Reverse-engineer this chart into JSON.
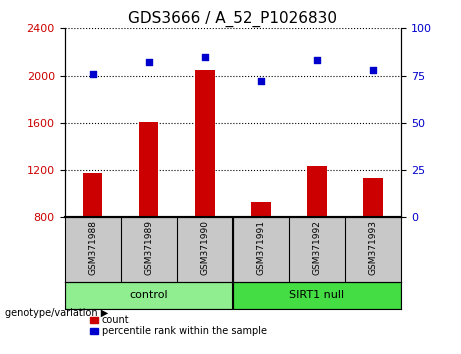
{
  "title": "GDS3666 / A_52_P1026830",
  "samples": [
    "GSM371988",
    "GSM371989",
    "GSM371990",
    "GSM371991",
    "GSM371992",
    "GSM371993"
  ],
  "count_values": [
    1170,
    1610,
    2050,
    930,
    1230,
    1130
  ],
  "percentile_values": [
    76,
    82,
    85,
    72,
    83,
    78
  ],
  "ylim_left": [
    800,
    2400
  ],
  "ylim_right": [
    0,
    100
  ],
  "yticks_left": [
    800,
    1200,
    1600,
    2000,
    2400
  ],
  "yticks_right": [
    0,
    25,
    50,
    75,
    100
  ],
  "bar_color": "#cc0000",
  "point_color": "#0000cc",
  "bar_baseline": 800,
  "groups": [
    {
      "label": "control",
      "start": 0,
      "end": 2,
      "color": "#90ee90"
    },
    {
      "label": "SIRT1 null",
      "start": 3,
      "end": 5,
      "color": "#44dd44"
    }
  ],
  "group_label_prefix": "genotype/variation",
  "legend_count_label": "count",
  "legend_pct_label": "percentile rank within the sample",
  "tick_label_color_left": "#cc0000",
  "tick_label_color_right": "#0000cc",
  "label_area_color": "#c8c8c8",
  "title_fontsize": 11,
  "axis_fontsize": 8,
  "label_fontsize": 8
}
